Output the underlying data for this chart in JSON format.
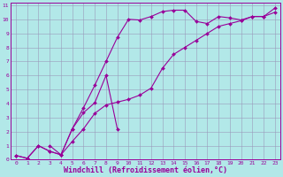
{
  "xlabel": "Windchill (Refroidissement éolien,°C)",
  "bg_color": "#b2e8e8",
  "line_color": "#990099",
  "grid_color": "#9999bb",
  "xlim": [
    -0.5,
    23.5
  ],
  "ylim": [
    0,
    11.2
  ],
  "xticks": [
    0,
    1,
    2,
    3,
    4,
    5,
    6,
    7,
    8,
    9,
    10,
    11,
    12,
    13,
    14,
    15,
    16,
    17,
    18,
    19,
    20,
    21,
    22,
    23
  ],
  "yticks": [
    0,
    1,
    2,
    3,
    4,
    5,
    6,
    7,
    8,
    9,
    10,
    11
  ],
  "series1_x": [
    0,
    1,
    2,
    3,
    4,
    5,
    6,
    7,
    8,
    9,
    10,
    11,
    12,
    13,
    14,
    15,
    16,
    17,
    18,
    19,
    20,
    21,
    22,
    23
  ],
  "series1_y": [
    0.3,
    0.1,
    1.0,
    0.6,
    0.35,
    1.3,
    2.2,
    3.3,
    3.9,
    4.1,
    4.3,
    4.6,
    5.1,
    6.5,
    7.5,
    8.0,
    8.5,
    9.0,
    9.5,
    9.7,
    9.9,
    10.2,
    10.2,
    10.5
  ],
  "series2_x": [
    0,
    1,
    2,
    3,
    4,
    5,
    6,
    7,
    8,
    9,
    10,
    11,
    12,
    13,
    14,
    15,
    16,
    17,
    18,
    19,
    20,
    21,
    22,
    23
  ],
  "series2_y": [
    0.3,
    0.1,
    1.0,
    0.6,
    0.35,
    2.2,
    3.7,
    5.3,
    7.0,
    8.7,
    10.0,
    9.95,
    10.2,
    10.55,
    10.65,
    10.65,
    9.85,
    9.7,
    10.2,
    10.1,
    9.95,
    10.2,
    10.2,
    10.8
  ],
  "series3_x": [
    3,
    4,
    5,
    6,
    7,
    8,
    9
  ],
  "series3_y": [
    1.0,
    0.35,
    2.2,
    3.35,
    4.05,
    6.0,
    2.2
  ],
  "marker": "D",
  "markersize": 2,
  "linewidth": 0.8,
  "tick_fontsize": 4.5,
  "label_fontsize": 6.0
}
